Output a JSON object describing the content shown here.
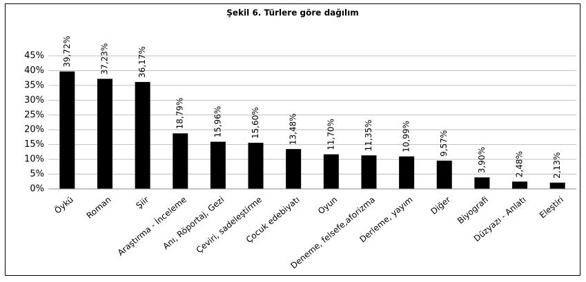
{
  "chart_data": {
    "type": "bar",
    "title": "Şekil 6. Türlere göre dağılım",
    "categories": [
      "Öykü",
      "Roman",
      "Şiir",
      "Araştırma - İnceleme",
      "Anı, Röportaj, Gezi",
      "Çeviri, sadeleştirme",
      "Çocuk edebiyatı",
      "Oyun",
      "Deneme, felsefe,aforizma",
      "Derleme, yayım",
      "Diğer",
      "Biyografi",
      "Düzyazı - Anlatı",
      "Eleştiri"
    ],
    "values": [
      39.72,
      37.23,
      36.17,
      18.79,
      15.96,
      15.6,
      13.48,
      11.7,
      11.35,
      10.99,
      9.57,
      3.9,
      2.48,
      2.13
    ],
    "value_labels": [
      "39,72%",
      "37,23%",
      "36,17%",
      "18,79%",
      "15,96%",
      "15,60%",
      "13,48%",
      "11,70%",
      "11,35%",
      "10,99%",
      "9,57%",
      "3,90%",
      "2,48%",
      "2,13%"
    ],
    "color": "#000000",
    "ylim": [
      0,
      45
    ],
    "yticks": [
      {
        "value": 0,
        "label": "0%"
      },
      {
        "value": 5,
        "label": "5%"
      },
      {
        "value": 10,
        "label": "10%"
      },
      {
        "value": 15,
        "label": "15%"
      },
      {
        "value": 20,
        "label": "20%"
      },
      {
        "value": 25,
        "label": "25%"
      },
      {
        "value": 30,
        "label": "30%"
      },
      {
        "value": 35,
        "label": "35%"
      },
      {
        "value": 40,
        "label": "40%"
      },
      {
        "value": 45,
        "label": "45%"
      }
    ],
    "grid": true
  }
}
